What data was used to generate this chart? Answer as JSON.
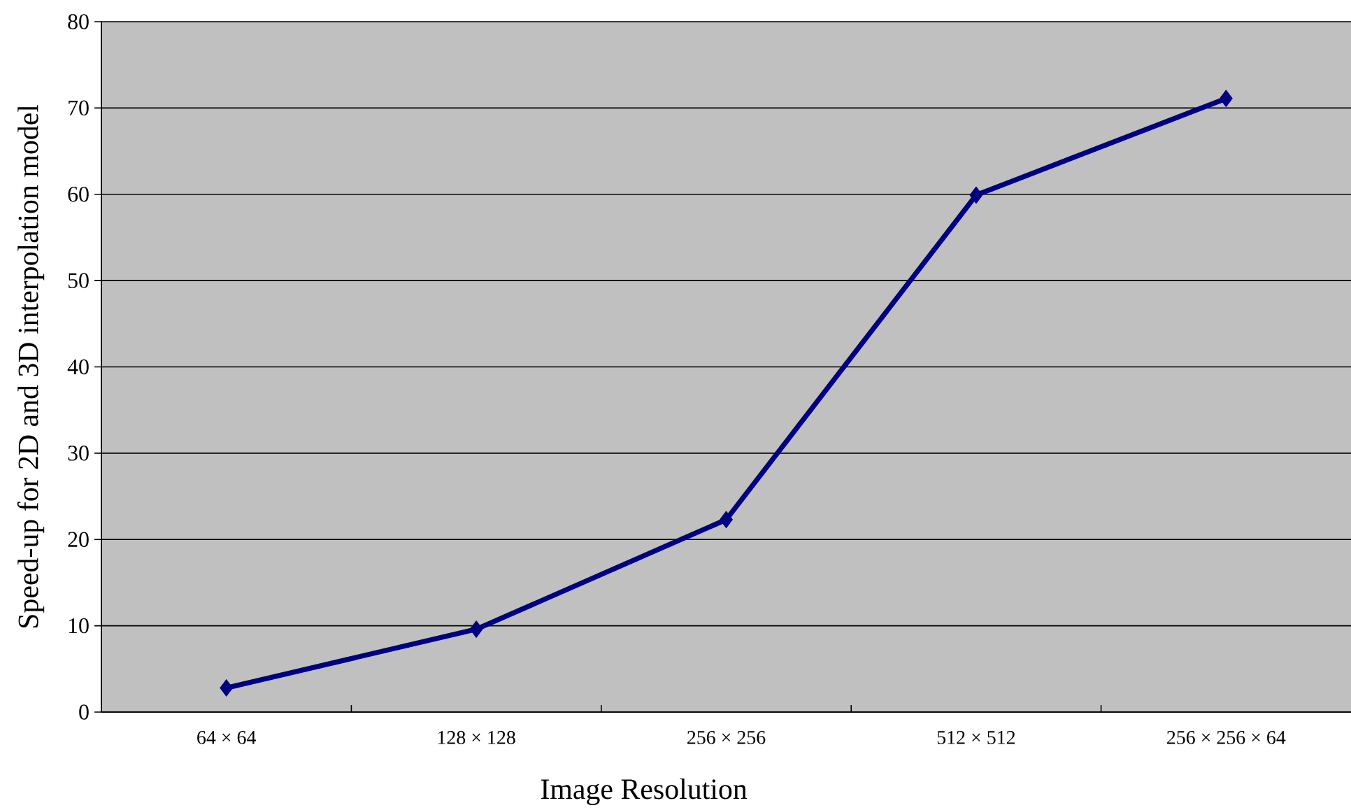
{
  "chart_data": {
    "type": "line",
    "xlabel": "Image Resolution",
    "ylabel": "Speed-up for 2D and 3D interpolation model",
    "categories": [
      "64 × 64",
      "128 × 128",
      "256 × 256",
      "512 × 512",
      "256 × 256 × 64"
    ],
    "series": [
      {
        "color": "#000080",
        "values": [
          2.8,
          9.6,
          22.3,
          59.9,
          71.1
        ]
      }
    ],
    "ylim": [
      0,
      80
    ],
    "yticks": [
      0,
      10,
      20,
      30,
      40,
      50,
      60,
      70,
      80
    ],
    "grid": "y",
    "marker": "diamond",
    "line_style": "solid"
  }
}
